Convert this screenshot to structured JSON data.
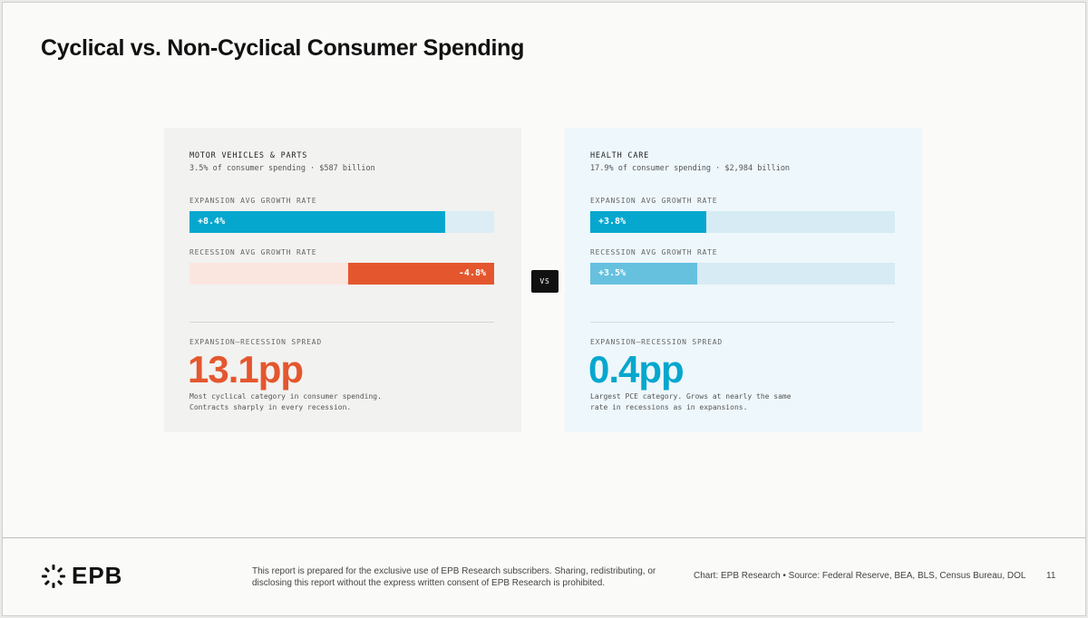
{
  "title": "Cyclical vs. Non-Cyclical Consumer Spending",
  "vs_label": "VS",
  "chart_data": [
    {
      "type": "bar",
      "category": "MOTOR VEHICLES & PARTS",
      "subtitle": "3.5% of consumer spending  ·  $587 billion",
      "bars": [
        {
          "label": "EXPANSION AVG GROWTH RATE",
          "value": 8.4,
          "value_label": "+8.4%",
          "color": "#06a7ce",
          "track": "#dcedf5"
        },
        {
          "label": "RECESSION AVG GROWTH RATE",
          "value": -4.8,
          "value_label": "-4.8%",
          "color": "#e4572e",
          "track": "#fbe6df"
        }
      ],
      "spread_label": "EXPANSION–RECESSION SPREAD",
      "spread_value": "13.1pp",
      "spread_color": "#e4572e",
      "note": "Most cyclical category in consumer spending. Contracts sharply in every recession."
    },
    {
      "type": "bar",
      "category": "HEALTH CARE",
      "subtitle": "17.9% of consumer spending  ·  $2,984 billion",
      "bars": [
        {
          "label": "EXPANSION AVG GROWTH RATE",
          "value": 3.8,
          "value_label": "+3.8%",
          "color": "#06a7ce",
          "track": "#d7ebf4"
        },
        {
          "label": "RECESSION AVG GROWTH RATE",
          "value": 3.5,
          "value_label": "+3.5%",
          "color": "#66c1df",
          "track": "#d7ebf4"
        }
      ],
      "spread_label": "EXPANSION–RECESSION SPREAD",
      "spread_value": "0.4pp",
      "spread_color": "#06a7ce",
      "note": "Largest PCE category. Grows at nearly the same rate in recessions as in expansions."
    }
  ],
  "footer": {
    "logo_text": "EPB",
    "disclaimer": "This report is prepared for the exclusive use of EPB Research subscribers. Sharing, redistributing, or disclosing this report without the express written consent of EPB Research is prohibited.",
    "source": "Chart: EPB Research  •  Source: Federal Reserve, BEA, BLS, Census Bureau, DOL",
    "page_number": "11"
  }
}
